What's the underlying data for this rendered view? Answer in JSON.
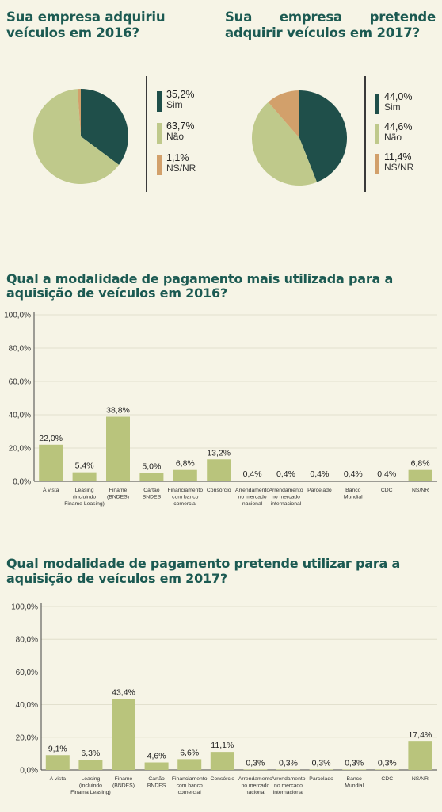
{
  "colors": {
    "sim": "#1f4f4a",
    "nao": "#bfc98b",
    "nsnr": "#d2a06b",
    "bar": "#b9c47c",
    "title": "#1c5a52"
  },
  "chart_data": [
    {
      "type": "pie",
      "title": "Sua empresa adquiriu veículos em 2016?",
      "slices": [
        {
          "label": "Sim",
          "value": 35.2,
          "value_label": "35,2%",
          "color": "#1f4f4a"
        },
        {
          "label": "Não",
          "value": 63.7,
          "value_label": "63,7%",
          "color": "#bfc98b"
        },
        {
          "label": "NS/NR",
          "value": 1.1,
          "value_label": "1,1%",
          "color": "#d2a06b"
        }
      ]
    },
    {
      "type": "pie",
      "title": "Sua empresa pretende adquirir veículos em 2017?",
      "slices": [
        {
          "label": "Sim",
          "value": 44.0,
          "value_label": "44,0%",
          "color": "#1f4f4a"
        },
        {
          "label": "Não",
          "value": 44.6,
          "value_label": "44,6%",
          "color": "#bfc98b"
        },
        {
          "label": "NS/NR",
          "value": 11.4,
          "value_label": "11,4%",
          "color": "#d2a06b"
        }
      ]
    },
    {
      "type": "bar",
      "title": "Qual a modalidade de pagamento mais utilizada para a aquisição de veículos em 2016?",
      "ylim": [
        0,
        100
      ],
      "yticks": [
        "0,0%",
        "20,0%",
        "40,0%",
        "60,0%",
        "80,0%",
        "100,0%"
      ],
      "categories": [
        [
          "À vista"
        ],
        [
          "Leasing",
          "(incluindo",
          "Finame Leasing)"
        ],
        [
          "Finame",
          "(BNDES)"
        ],
        [
          "Cartão",
          "BNDES"
        ],
        [
          "Financiamento",
          "com banco",
          "comercial"
        ],
        [
          "Consórcio"
        ],
        [
          "Arrendamento",
          "no mercado",
          "nacional"
        ],
        [
          "Arrendamento",
          "no mercado",
          "internacional"
        ],
        [
          "Parcelado"
        ],
        [
          "Banco",
          "Mundial"
        ],
        [
          "CDC"
        ],
        [
          "NS/NR"
        ]
      ],
      "values": [
        22.0,
        5.4,
        38.8,
        5.0,
        6.8,
        13.2,
        0.4,
        0.4,
        0.4,
        0.4,
        0.4,
        6.8
      ],
      "value_labels": [
        "22,0%",
        "5,4%",
        "38,8%",
        "5,0%",
        "6,8%",
        "13,2%",
        "0,4%",
        "0,4%",
        "0,4%",
        "0,4%",
        "0,4%",
        "6,8%"
      ]
    },
    {
      "type": "bar",
      "title": "Qual modalidade de pagamento pretende utilizar para a aquisição de veículos em 2017?",
      "ylim": [
        0,
        100
      ],
      "yticks": [
        "0,0%",
        "20,0%",
        "40,0%",
        "60,0%",
        "80,0%",
        "100,0%"
      ],
      "categories": [
        [
          "À vista"
        ],
        [
          "Leasing",
          "(incluindo",
          "Finama Leasing)"
        ],
        [
          "Finame",
          "(BNDES)"
        ],
        [
          "Cartão",
          "BNDES"
        ],
        [
          "Financiamento",
          "com banco",
          "comercial"
        ],
        [
          "Consórcio"
        ],
        [
          "Arrendamento",
          "no mercado",
          "nacional"
        ],
        [
          "Arrendamento",
          "no mercado",
          "internacional"
        ],
        [
          "Parcelado"
        ],
        [
          "Banco",
          "Mundial"
        ],
        [
          "CDC"
        ],
        [
          "NS/NR"
        ]
      ],
      "values": [
        9.1,
        6.3,
        43.4,
        4.6,
        6.6,
        11.1,
        0.3,
        0.3,
        0.3,
        0.3,
        0.3,
        17.4
      ],
      "value_labels": [
        "9,1%",
        "6,3%",
        "43,4%",
        "4,6%",
        "6,6%",
        "11,1%",
        "0,3%",
        "0,3%",
        "0,3%",
        "0,3%",
        "0,3%",
        "17,4%"
      ]
    }
  ]
}
